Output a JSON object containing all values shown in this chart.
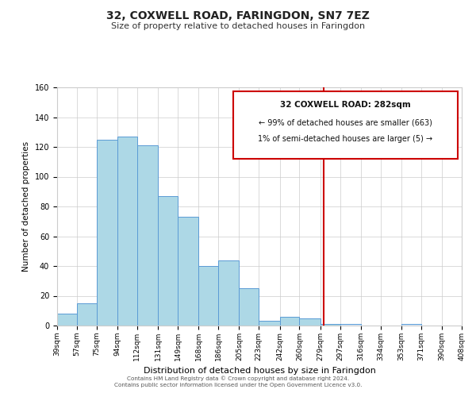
{
  "title": "32, COXWELL ROAD, FARINGDON, SN7 7EZ",
  "subtitle": "Size of property relative to detached houses in Faringdon",
  "xlabel": "Distribution of detached houses by size in Faringdon",
  "ylabel": "Number of detached properties",
  "bin_labels": [
    "39sqm",
    "57sqm",
    "75sqm",
    "94sqm",
    "112sqm",
    "131sqm",
    "149sqm",
    "168sqm",
    "186sqm",
    "205sqm",
    "223sqm",
    "242sqm",
    "260sqm",
    "279sqm",
    "297sqm",
    "316sqm",
    "334sqm",
    "353sqm",
    "371sqm",
    "390sqm",
    "408sqm"
  ],
  "bin_edges": [
    39,
    57,
    75,
    94,
    112,
    131,
    149,
    168,
    186,
    205,
    223,
    242,
    260,
    279,
    297,
    316,
    334,
    353,
    371,
    390,
    408
  ],
  "bar_heights": [
    8,
    15,
    125,
    127,
    121,
    87,
    73,
    40,
    44,
    25,
    3,
    6,
    5,
    1,
    1,
    0,
    0,
    1,
    0,
    0
  ],
  "bar_color": "#add8e6",
  "bar_edge_color": "#5b9bd5",
  "highlight_color": "#ddeeff",
  "vline_x": 282,
  "vline_color": "#cc0000",
  "annotation_title": "32 COXWELL ROAD: 282sqm",
  "annotation_line1": "← 99% of detached houses are smaller (663)",
  "annotation_line2": "1% of semi-detached houses are larger (5) →",
  "annotation_border_color": "#cc0000",
  "ylim": [
    0,
    160
  ],
  "yticks": [
    0,
    20,
    40,
    60,
    80,
    100,
    120,
    140,
    160
  ],
  "footer1": "Contains HM Land Registry data © Crown copyright and database right 2024.",
  "footer2": "Contains public sector information licensed under the Open Government Licence v3.0.",
  "background_color": "#ffffff",
  "grid_color": "#cccccc"
}
